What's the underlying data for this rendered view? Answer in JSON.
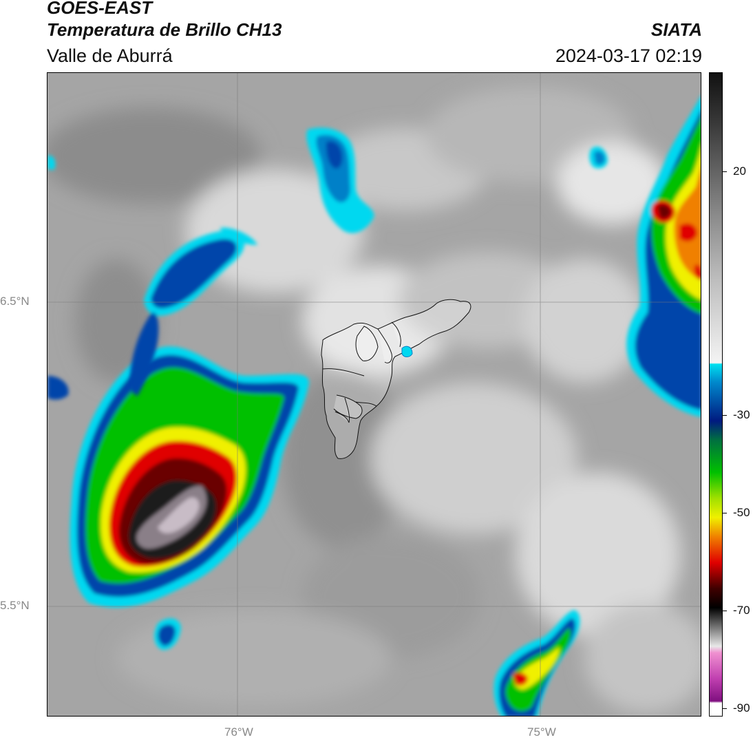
{
  "header": {
    "satellite": "GOES-EAST",
    "product": "Temperatura de Brillo CH13",
    "organization": "SIATA",
    "region": "Valle de Aburrá",
    "datetime": "2024-03-17 02:19"
  },
  "map": {
    "lat_labels": [
      "6.5°N",
      "5.5°N"
    ],
    "lon_labels": [
      "76°W",
      "75°W"
    ]
  },
  "colorbar": {
    "ticks": [
      "20",
      "-30",
      "-50",
      "-70",
      "-90"
    ],
    "colors": {
      "warm_gray": "#9a9a9a",
      "cyan": "#00d8f0",
      "blue": "#0044aa",
      "green": "#00c000",
      "yellow": "#f0f000",
      "red": "#e00000",
      "black": "#111111",
      "magenta": "#c040c0"
    }
  }
}
